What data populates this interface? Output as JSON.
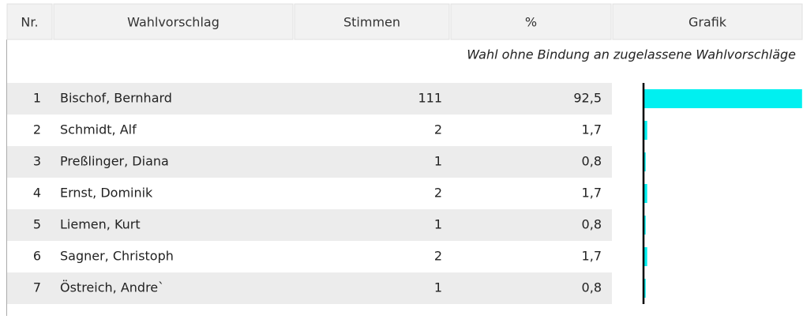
{
  "table": {
    "header": [
      "Nr.",
      "Wahlvorschlag",
      "Stimmen",
      "%",
      "Grafik"
    ],
    "note": "Wahl ohne Bindung an zugelassene Wahlvorschläge",
    "rows": [
      {
        "nr": "1",
        "name": "Bischof, Bernhard",
        "votes": "111",
        "percent": {
          "value": 92.5,
          "label": "92,5"
        }
      },
      {
        "nr": "2",
        "name": "Schmidt, Alf",
        "votes": "2",
        "percent": {
          "value": 1.7,
          "label": "1,7"
        }
      },
      {
        "nr": "3",
        "name": "Preßlinger, Diana",
        "votes": "1",
        "percent": {
          "value": 0.8,
          "label": "0,8"
        }
      },
      {
        "nr": "4",
        "name": "Ernst, Dominik",
        "votes": "2",
        "percent": {
          "value": 1.7,
          "label": "1,7"
        }
      },
      {
        "nr": "5",
        "name": "Liemen, Kurt",
        "votes": "1",
        "percent": {
          "value": 0.8,
          "label": "0,8"
        }
      },
      {
        "nr": "6",
        "name": "Sagner, Christoph",
        "votes": "2",
        "percent": {
          "value": 1.7,
          "label": "1,7"
        }
      },
      {
        "nr": "7",
        "name": "Östreich, Andre`",
        "votes": "1",
        "percent": {
          "value": 0.8,
          "label": "0,8"
        }
      }
    ]
  }
}
